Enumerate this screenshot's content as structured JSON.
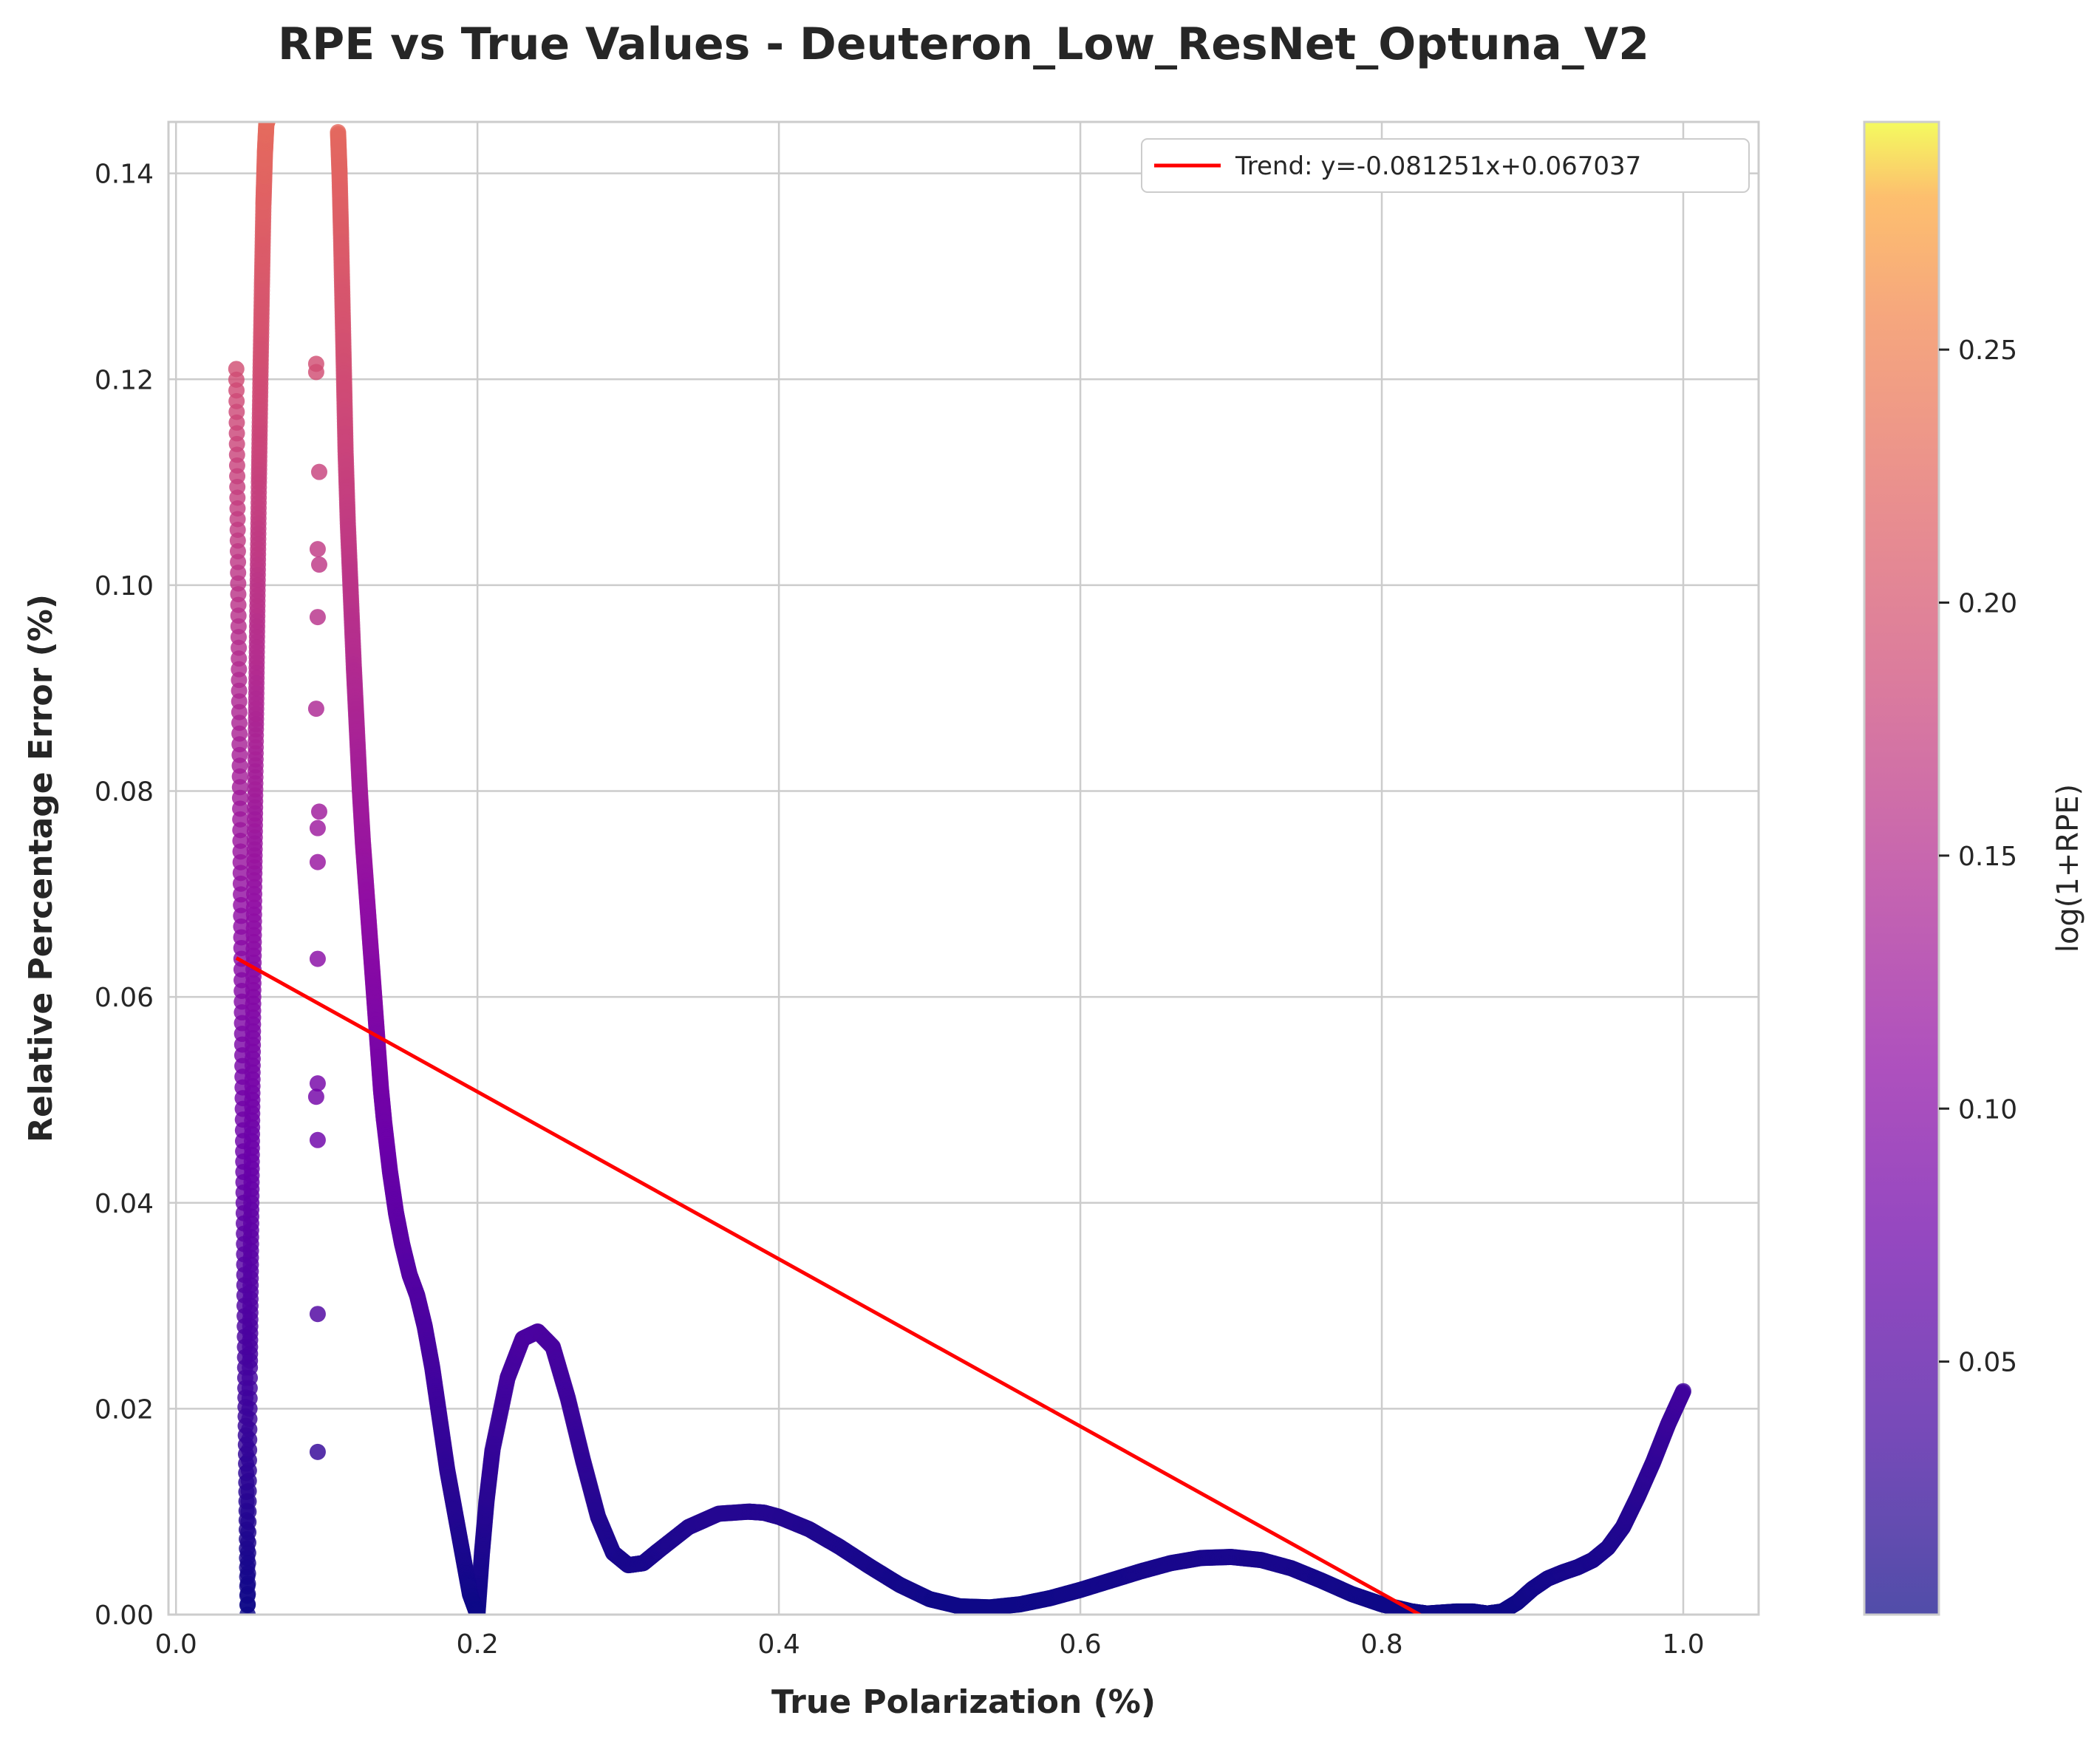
{
  "chart_data": {
    "type": "scatter",
    "title": "RPE vs True Values - Deuteron_Low_ResNet_Optuna_V2",
    "xlabel": "True Polarization (%)",
    "ylabel": "Relative Percentage Error (%)",
    "xlim": [
      -0.005,
      1.05
    ],
    "ylim": [
      0,
      0.145
    ],
    "xticks": [
      0.0,
      0.2,
      0.4,
      0.6,
      0.8,
      1.0
    ],
    "xtick_labels": [
      "0.0",
      "0.2",
      "0.4",
      "0.6",
      "0.8",
      "1.0"
    ],
    "yticks": [
      0.0,
      0.02,
      0.04,
      0.06,
      0.08,
      0.1,
      0.12,
      0.14
    ],
    "ytick_labels": [
      "0.00",
      "0.02",
      "0.04",
      "0.06",
      "0.08",
      "0.10",
      "0.12",
      "0.14"
    ],
    "grid": true,
    "colormap": "plasma",
    "colorbar": {
      "label": "log(1+RPE)",
      "range": [
        0.0,
        0.295
      ],
      "ticks": [
        0.05,
        0.1,
        0.15,
        0.2,
        0.25
      ],
      "tick_labels": [
        "0.05",
        "0.10",
        "0.15",
        "0.20",
        "0.25"
      ]
    },
    "series": [
      {
        "kind": "scatter-curve",
        "x": [
          0.2,
          0.203,
          0.206,
          0.21,
          0.22,
          0.23,
          0.24,
          0.25,
          0.26,
          0.27,
          0.28,
          0.29,
          0.3,
          0.31,
          0.32,
          0.34,
          0.36,
          0.38,
          0.39,
          0.4,
          0.42,
          0.44,
          0.46,
          0.48,
          0.5,
          0.52,
          0.54,
          0.56,
          0.58,
          0.6,
          0.62,
          0.64,
          0.66,
          0.68,
          0.7,
          0.72,
          0.74,
          0.76,
          0.78,
          0.8,
          0.82,
          0.83,
          0.84,
          0.85,
          0.86,
          0.87,
          0.88,
          0.89,
          0.9,
          0.91,
          0.92,
          0.93,
          0.94,
          0.95,
          0.96,
          0.97,
          0.98,
          0.99,
          1.0
        ],
        "y": [
          0.0,
          0.006,
          0.011,
          0.016,
          0.023,
          0.0268,
          0.0275,
          0.026,
          0.021,
          0.015,
          0.0095,
          0.006,
          0.0048,
          0.005,
          0.0062,
          0.0085,
          0.0098,
          0.01,
          0.0099,
          0.0095,
          0.0083,
          0.0066,
          0.0047,
          0.0029,
          0.0015,
          0.0008,
          0.0007,
          0.001,
          0.0016,
          0.0024,
          0.0033,
          0.0042,
          0.005,
          0.0055,
          0.0056,
          0.0053,
          0.0045,
          0.0033,
          0.002,
          0.001,
          0.0003,
          0.0001,
          0.0002,
          0.0003,
          0.0003,
          0.0001,
          0.0003,
          0.0012,
          0.0025,
          0.0035,
          0.0041,
          0.0046,
          0.0053,
          0.0065,
          0.0085,
          0.0115,
          0.0148,
          0.0185,
          0.0217
        ]
      },
      {
        "kind": "scatter-curve",
        "x": [
          0.04,
          0.0415,
          0.043,
          0.0445,
          0.046,
          0.0475,
          0.049,
          0.05,
          0.051,
          0.052,
          0.053,
          0.054,
          0.055,
          0.056,
          0.057,
          0.058,
          0.059,
          0.06,
          0.0605
        ],
        "y": [
          0.121,
          0.096,
          0.071,
          0.046,
          0.022,
          0.0,
          0.024,
          0.04,
          0.056,
          0.072,
          0.086,
          0.098,
          0.11,
          0.12,
          0.129,
          0.137,
          0.142,
          0.145,
          0.145
        ]
      },
      {
        "kind": "scatter-curve",
        "x": [
          0.1075,
          0.1085,
          0.1095,
          0.1105,
          0.1115,
          0.1125,
          0.114,
          0.116,
          0.118,
          0.12,
          0.122,
          0.124,
          0.126,
          0.128,
          0.13,
          0.132,
          0.134,
          0.136,
          0.138,
          0.142,
          0.146,
          0.15,
          0.155,
          0.16,
          0.165,
          0.17,
          0.175,
          0.18,
          0.185,
          0.19,
          0.195,
          0.2
        ],
        "y": [
          0.144,
          0.14,
          0.134,
          0.127,
          0.12,
          0.113,
          0.106,
          0.099,
          0.092,
          0.086,
          0.08,
          0.075,
          0.071,
          0.067,
          0.063,
          0.059,
          0.055,
          0.051,
          0.048,
          0.043,
          0.039,
          0.036,
          0.033,
          0.031,
          0.028,
          0.024,
          0.019,
          0.014,
          0.01,
          0.006,
          0.002,
          0.0
        ]
      },
      {
        "kind": "scatter-points",
        "x": [
          0.093,
          0.093,
          0.095,
          0.094,
          0.095,
          0.094,
          0.093,
          0.095,
          0.094,
          0.094,
          0.094,
          0.094,
          0.093,
          0.094,
          0.094
        ],
        "y": [
          0.1215,
          0.1207,
          0.111,
          0.1035,
          0.102,
          0.0969,
          0.088,
          0.078,
          0.0764,
          0.0731,
          0.0637,
          0.0516,
          0.0503,
          0.0461,
          0.0292
        ]
      }
    ],
    "extra_points": {
      "x": [
        0.094
      ],
      "y": [
        0.0158
      ]
    },
    "trend": {
      "name": "Trend: y=-0.081251x+0.067037",
      "slope": -0.081251,
      "intercept": 0.067037,
      "x_range": [
        0.04,
        1.0
      ],
      "color": "#ff0000"
    },
    "legend_position": "top-right"
  }
}
